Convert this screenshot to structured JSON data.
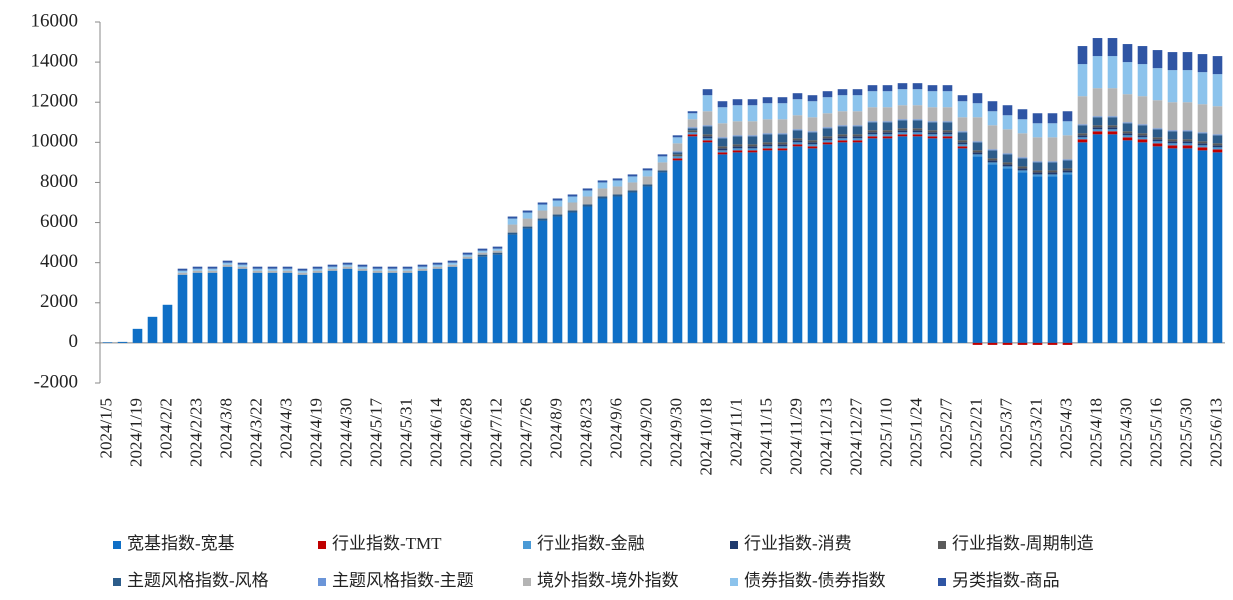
{
  "chart_data": {
    "type": "bar",
    "stacked": true,
    "categories": [
      "2024/1/5",
      null,
      "2024/1/19",
      null,
      "2024/2/2",
      null,
      "2024/2/23",
      null,
      "2024/3/8",
      null,
      "2024/3/22",
      null,
      "2024/4/3",
      null,
      "2024/4/19",
      null,
      "2024/4/30",
      null,
      "2024/5/17",
      null,
      "2024/5/31",
      null,
      "2024/6/14",
      null,
      "2024/6/28",
      null,
      "2024/7/12",
      null,
      "2024/7/26",
      null,
      "2024/8/9",
      null,
      "2024/8/23",
      null,
      "2024/9/6",
      null,
      "2024/9/20",
      null,
      "2024/9/30",
      null,
      "2024/10/18",
      null,
      "2024/11/1",
      null,
      "2024/11/15",
      null,
      "2024/11/29",
      null,
      "2024/12/13",
      null,
      "2024/12/27",
      null,
      "2025/1/10",
      null,
      "2025/1/24",
      null,
      "2025/2/7",
      null,
      "2025/2/21",
      null,
      "2025/3/7",
      null,
      "2025/3/21",
      null,
      "2025/4/3",
      null,
      "2025/4/18",
      null,
      "2025/4/30",
      null,
      "2025/5/16",
      null,
      "2025/5/30",
      null,
      "2025/6/13"
    ],
    "series": [
      {
        "name": "宽基指数-宽基",
        "color": "#0f6fc6",
        "values": [
          30,
          50,
          700,
          1300,
          1900,
          3400,
          3500,
          3500,
          3800,
          3700,
          3500,
          3500,
          3500,
          3400,
          3500,
          3600,
          3700,
          3600,
          3500,
          3500,
          3500,
          3600,
          3700,
          3800,
          4200,
          4300,
          4400,
          5400,
          5700,
          6100,
          6300,
          6500,
          6800,
          7200,
          7300,
          7500,
          7800,
          8500,
          9100,
          10300,
          10000,
          9400,
          9500,
          9500,
          9600,
          9600,
          9800,
          9700,
          9900,
          10000,
          10000,
          10200,
          10200,
          10300,
          10300,
          10200,
          10200,
          9700,
          9300,
          8900,
          8700,
          8500,
          8300,
          8300,
          8400,
          10000,
          10400,
          10400,
          10100,
          10000,
          9800,
          9700,
          9700,
          9600,
          9500
        ]
      },
      {
        "name": "行业指数-TMT",
        "color": "#c00000",
        "values": [
          0,
          0,
          0,
          0,
          0,
          0,
          0,
          0,
          0,
          0,
          0,
          0,
          0,
          0,
          0,
          0,
          0,
          0,
          0,
          0,
          0,
          0,
          0,
          0,
          0,
          0,
          0,
          0,
          0,
          0,
          0,
          0,
          0,
          0,
          0,
          0,
          0,
          0,
          100,
          100,
          100,
          100,
          100,
          100,
          100,
          100,
          100,
          100,
          100,
          100,
          100,
          100,
          100,
          100,
          100,
          100,
          100,
          100,
          -100,
          -100,
          -100,
          -100,
          -100,
          -100,
          -100,
          150,
          150,
          150,
          150,
          150,
          150,
          150,
          150,
          150,
          150
        ]
      },
      {
        "name": "行业指数-金融",
        "color": "#4a9ad6",
        "values": [
          0,
          0,
          0,
          0,
          0,
          0,
          0,
          0,
          0,
          0,
          0,
          0,
          0,
          0,
          0,
          0,
          0,
          0,
          0,
          0,
          0,
          0,
          0,
          0,
          0,
          0,
          0,
          0,
          0,
          0,
          0,
          0,
          0,
          0,
          0,
          0,
          0,
          0,
          100,
          100,
          100,
          100,
          100,
          100,
          100,
          100,
          100,
          100,
          100,
          100,
          100,
          100,
          100,
          100,
          100,
          100,
          100,
          100,
          100,
          100,
          100,
          100,
          100,
          100,
          100,
          100,
          100,
          100,
          100,
          100,
          100,
          100,
          100,
          100,
          100
        ]
      },
      {
        "name": "行业指数-消费",
        "color": "#1f3a6e",
        "values": [
          0,
          0,
          0,
          0,
          0,
          0,
          0,
          0,
          0,
          0,
          0,
          0,
          0,
          0,
          0,
          0,
          0,
          0,
          0,
          0,
          0,
          0,
          0,
          0,
          0,
          0,
          0,
          0,
          0,
          0,
          0,
          0,
          0,
          0,
          0,
          0,
          0,
          0,
          0,
          0,
          100,
          100,
          100,
          100,
          100,
          100,
          100,
          100,
          100,
          100,
          100,
          100,
          100,
          100,
          100,
          100,
          100,
          100,
          100,
          100,
          100,
          100,
          100,
          100,
          100,
          100,
          100,
          100,
          100,
          100,
          100,
          100,
          100,
          100,
          100
        ]
      },
      {
        "name": "行业指数-周期制造",
        "color": "#5a5a5a",
        "values": [
          0,
          0,
          0,
          0,
          0,
          0,
          0,
          0,
          0,
          0,
          0,
          0,
          0,
          0,
          0,
          0,
          0,
          0,
          0,
          0,
          0,
          0,
          0,
          0,
          0,
          0,
          0,
          0,
          0,
          0,
          0,
          0,
          0,
          0,
          0,
          0,
          0,
          0,
          100,
          100,
          100,
          100,
          100,
          100,
          100,
          100,
          100,
          100,
          100,
          100,
          100,
          100,
          100,
          100,
          100,
          100,
          100,
          100,
          100,
          100,
          100,
          100,
          100,
          100,
          100,
          100,
          100,
          100,
          100,
          100,
          100,
          100,
          100,
          100,
          100
        ]
      },
      {
        "name": "主题风格指数-风格",
        "color": "#2c5c8a",
        "values": [
          0,
          0,
          0,
          0,
          0,
          0,
          0,
          0,
          0,
          0,
          0,
          0,
          0,
          0,
          0,
          0,
          0,
          0,
          0,
          0,
          0,
          0,
          0,
          0,
          0,
          100,
          100,
          100,
          100,
          100,
          100,
          100,
          100,
          100,
          100,
          100,
          100,
          100,
          100,
          100,
          400,
          400,
          400,
          400,
          400,
          400,
          400,
          400,
          400,
          400,
          400,
          400,
          400,
          400,
          400,
          400,
          400,
          400,
          400,
          400,
          400,
          400,
          400,
          400,
          400,
          400,
          400,
          400,
          400,
          400,
          400,
          400,
          400,
          400,
          400
        ]
      },
      {
        "name": "主题风格指数-主题",
        "color": "#6b95d8",
        "values": [
          0,
          0,
          0,
          0,
          0,
          0,
          0,
          0,
          0,
          0,
          0,
          0,
          0,
          0,
          0,
          0,
          0,
          0,
          0,
          0,
          0,
          0,
          0,
          0,
          0,
          0,
          0,
          0,
          0,
          0,
          0,
          0,
          0,
          0,
          0,
          0,
          0,
          0,
          50,
          50,
          50,
          50,
          50,
          50,
          50,
          50,
          50,
          50,
          50,
          50,
          50,
          50,
          50,
          50,
          50,
          50,
          50,
          50,
          50,
          50,
          50,
          50,
          50,
          50,
          50,
          50,
          50,
          50,
          50,
          50,
          50,
          50,
          50,
          50,
          50
        ]
      },
      {
        "name": "境外指数-境外指数",
        "color": "#b4b4b4",
        "values": [
          0,
          0,
          0,
          0,
          0,
          100,
          100,
          100,
          100,
          100,
          100,
          100,
          100,
          100,
          100,
          100,
          100,
          100,
          100,
          100,
          100,
          100,
          100,
          100,
          100,
          100,
          100,
          400,
          400,
          400,
          400,
          400,
          400,
          400,
          400,
          400,
          400,
          400,
          400,
          400,
          700,
          700,
          700,
          700,
          700,
          700,
          700,
          700,
          700,
          700,
          700,
          700,
          700,
          700,
          700,
          700,
          700,
          700,
          1200,
          1200,
          1200,
          1200,
          1200,
          1200,
          1200,
          1400,
          1400,
          1400,
          1400,
          1400,
          1400,
          1400,
          1400,
          1400,
          1400
        ]
      },
      {
        "name": "债券指数-债券指数",
        "color": "#8cc3ec",
        "values": [
          0,
          0,
          0,
          0,
          0,
          100,
          100,
          100,
          100,
          100,
          100,
          100,
          100,
          100,
          100,
          100,
          100,
          100,
          100,
          100,
          100,
          100,
          100,
          100,
          100,
          100,
          100,
          300,
          300,
          300,
          300,
          300,
          300,
          300,
          300,
          300,
          300,
          300,
          300,
          300,
          800,
          800,
          800,
          800,
          800,
          800,
          800,
          800,
          800,
          800,
          800,
          800,
          800,
          800,
          800,
          800,
          800,
          800,
          700,
          700,
          700,
          700,
          700,
          700,
          700,
          1600,
          1600,
          1600,
          1600,
          1600,
          1600,
          1600,
          1600,
          1600,
          1600
        ]
      },
      {
        "name": "另类指数-商品",
        "color": "#2f55a4",
        "values": [
          0,
          0,
          0,
          0,
          0,
          100,
          100,
          100,
          100,
          100,
          100,
          100,
          100,
          100,
          100,
          100,
          100,
          100,
          100,
          100,
          100,
          100,
          100,
          100,
          100,
          100,
          100,
          100,
          100,
          100,
          100,
          100,
          100,
          100,
          100,
          100,
          100,
          100,
          100,
          100,
          300,
          300,
          300,
          300,
          300,
          300,
          300,
          300,
          300,
          300,
          300,
          300,
          300,
          300,
          300,
          300,
          300,
          300,
          500,
          500,
          500,
          500,
          500,
          500,
          500,
          900,
          900,
          900,
          900,
          900,
          900,
          900,
          900,
          900,
          900
        ]
      }
    ],
    "ylim": [
      -2000,
      16000
    ],
    "yticks": [
      -2000,
      0,
      2000,
      4000,
      6000,
      8000,
      10000,
      12000,
      14000,
      16000
    ],
    "grid": false
  }
}
